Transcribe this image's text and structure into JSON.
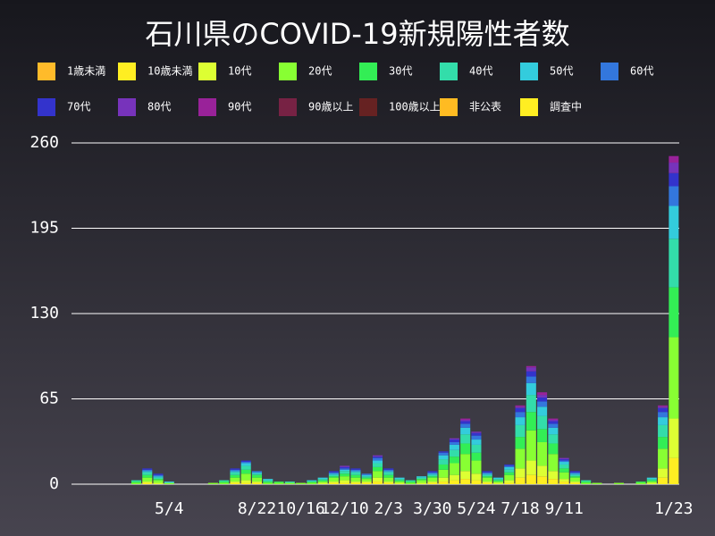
{
  "chart_data": {
    "type": "stacked_bar",
    "title": "石川県のCOVID-19新規陽性者数",
    "categories": [
      null,
      null,
      null,
      null,
      null,
      null,
      null,
      null,
      "5/4",
      null,
      null,
      null,
      null,
      null,
      null,
      null,
      "8/22",
      null,
      null,
      null,
      "10/16",
      null,
      null,
      null,
      "12/10",
      null,
      null,
      null,
      "2/3",
      null,
      null,
      null,
      "3/30",
      null,
      null,
      null,
      "5/24",
      null,
      null,
      null,
      "7/18",
      null,
      null,
      null,
      "9/11",
      null,
      null,
      null,
      null,
      null,
      null,
      null,
      null,
      null,
      "1/23"
    ],
    "ylim": [
      0,
      260
    ],
    "yticks": [
      0,
      65,
      130,
      195,
      260
    ],
    "grid": true,
    "series": [
      {
        "name": "1歳未満",
        "color": "#ffbb2a",
        "values": [
          0,
          0,
          0,
          0,
          0,
          0,
          0,
          0,
          0,
          0,
          0,
          0,
          0,
          0,
          0,
          0,
          0,
          0,
          0,
          0,
          0,
          0,
          0,
          0,
          0,
          0,
          0,
          0,
          0,
          0,
          0,
          0,
          0,
          0,
          0,
          0,
          0,
          0,
          0,
          0,
          0,
          0,
          0,
          0,
          0,
          0,
          0,
          0,
          0,
          0,
          0,
          0,
          0,
          0,
          0
        ]
      },
      {
        "name": "10歳未満",
        "color": "#ffee22",
        "values": [
          0,
          0,
          0,
          0,
          0,
          0,
          1,
          0,
          0,
          0,
          0,
          0,
          0,
          0,
          1,
          1,
          1,
          0,
          0,
          0,
          0,
          0,
          0,
          1,
          1,
          1,
          1,
          2,
          1,
          0,
          0,
          0,
          1,
          2,
          3,
          4,
          3,
          1,
          0,
          1,
          5,
          7,
          6,
          4,
          2,
          1,
          0,
          0,
          0,
          0,
          0,
          0,
          0,
          5,
          20
        ]
      },
      {
        "name": "10代",
        "color": "#ddff33",
        "values": [
          0,
          0,
          0,
          0,
          0,
          0,
          1,
          1,
          0,
          0,
          0,
          0,
          0,
          0,
          1,
          2,
          1,
          0,
          0,
          0,
          0,
          0,
          1,
          1,
          2,
          1,
          1,
          3,
          1,
          1,
          0,
          1,
          1,
          3,
          4,
          6,
          5,
          1,
          1,
          2,
          7,
          11,
          8,
          6,
          2,
          1,
          0,
          0,
          0,
          0,
          0,
          0,
          1,
          7,
          30
        ]
      },
      {
        "name": "20代",
        "color": "#88ff33",
        "values": [
          0,
          0,
          0,
          0,
          0,
          1,
          3,
          2,
          1,
          0,
          0,
          0,
          1,
          1,
          3,
          5,
          3,
          1,
          1,
          1,
          1,
          1,
          1,
          3,
          3,
          3,
          2,
          5,
          3,
          1,
          1,
          2,
          3,
          6,
          9,
          13,
          10,
          3,
          1,
          4,
          15,
          23,
          18,
          13,
          5,
          3,
          1,
          1,
          0,
          1,
          0,
          1,
          1,
          15,
          62
        ]
      },
      {
        "name": "30代",
        "color": "#33ee55",
        "values": [
          0,
          0,
          0,
          0,
          0,
          1,
          2,
          1,
          0,
          0,
          0,
          0,
          0,
          1,
          2,
          3,
          2,
          1,
          1,
          0,
          0,
          1,
          1,
          1,
          2,
          2,
          1,
          3,
          2,
          1,
          1,
          1,
          1,
          4,
          5,
          8,
          6,
          1,
          1,
          2,
          9,
          14,
          10,
          8,
          3,
          1,
          1,
          0,
          0,
          0,
          0,
          1,
          1,
          9,
          38
        ]
      },
      {
        "name": "40代",
        "color": "#33ddaa",
        "values": [
          0,
          0,
          0,
          0,
          0,
          1,
          2,
          1,
          0,
          0,
          0,
          0,
          0,
          1,
          2,
          3,
          1,
          1,
          0,
          1,
          0,
          0,
          1,
          1,
          2,
          2,
          1,
          3,
          2,
          1,
          1,
          1,
          1,
          4,
          5,
          7,
          6,
          1,
          1,
          2,
          9,
          13,
          10,
          7,
          3,
          1,
          1,
          0,
          0,
          0,
          0,
          0,
          1,
          9,
          37
        ]
      },
      {
        "name": "50代",
        "color": "#33ccdd",
        "values": [
          0,
          0,
          0,
          0,
          0,
          0,
          1,
          1,
          1,
          0,
          0,
          0,
          0,
          0,
          1,
          2,
          1,
          1,
          0,
          0,
          0,
          1,
          1,
          1,
          1,
          1,
          1,
          2,
          1,
          1,
          0,
          1,
          1,
          3,
          4,
          5,
          4,
          1,
          1,
          2,
          6,
          9,
          7,
          5,
          2,
          1,
          0,
          0,
          0,
          0,
          0,
          0,
          1,
          6,
          25
        ]
      },
      {
        "name": "60代",
        "color": "#3377dd",
        "values": [
          0,
          0,
          0,
          0,
          0,
          0,
          1,
          1,
          0,
          0,
          0,
          0,
          0,
          0,
          1,
          1,
          1,
          0,
          0,
          0,
          0,
          0,
          0,
          1,
          1,
          1,
          1,
          2,
          1,
          0,
          0,
          0,
          1,
          2,
          2,
          3,
          3,
          1,
          0,
          1,
          4,
          5,
          4,
          3,
          1,
          1,
          0,
          0,
          0,
          0,
          0,
          0,
          0,
          4,
          15
        ]
      },
      {
        "name": "70代",
        "color": "#3333cc",
        "values": [
          0,
          0,
          0,
          0,
          0,
          0,
          1,
          1,
          0,
          0,
          0,
          0,
          0,
          0,
          1,
          1,
          0,
          0,
          0,
          0,
          0,
          0,
          0,
          1,
          1,
          1,
          0,
          1,
          1,
          0,
          0,
          0,
          1,
          1,
          2,
          2,
          2,
          1,
          0,
          1,
          3,
          4,
          3,
          2,
          1,
          1,
          0,
          0,
          0,
          0,
          0,
          0,
          0,
          3,
          10
        ]
      },
      {
        "name": "80代",
        "color": "#7733bb",
        "values": [
          0,
          0,
          0,
          0,
          0,
          0,
          0,
          0,
          0,
          0,
          0,
          0,
          0,
          0,
          0,
          0,
          0,
          0,
          0,
          0,
          0,
          0,
          0,
          0,
          1,
          0,
          0,
          1,
          0,
          0,
          0,
          0,
          0,
          0,
          1,
          1,
          1,
          0,
          0,
          0,
          1,
          3,
          2,
          1,
          1,
          0,
          0,
          0,
          0,
          0,
          0,
          0,
          0,
          1,
          8
        ]
      },
      {
        "name": "90代",
        "color": "#992299",
        "values": [
          0,
          0,
          0,
          0,
          0,
          0,
          0,
          0,
          0,
          0,
          0,
          0,
          0,
          0,
          0,
          0,
          0,
          0,
          0,
          0,
          0,
          0,
          0,
          0,
          0,
          0,
          0,
          0,
          0,
          0,
          0,
          0,
          0,
          0,
          0,
          1,
          0,
          0,
          0,
          0,
          1,
          1,
          2,
          1,
          0,
          0,
          0,
          0,
          0,
          0,
          0,
          0,
          0,
          1,
          5
        ]
      },
      {
        "name": "90歳以上",
        "color": "#772244",
        "values": [
          0,
          0,
          0,
          0,
          0,
          0,
          0,
          0,
          0,
          0,
          0,
          0,
          0,
          0,
          0,
          0,
          0,
          0,
          0,
          0,
          0,
          0,
          0,
          0,
          0,
          0,
          0,
          0,
          0,
          0,
          0,
          0,
          0,
          0,
          0,
          0,
          0,
          0,
          0,
          0,
          0,
          0,
          0,
          0,
          0,
          0,
          0,
          0,
          0,
          0,
          0,
          0,
          0,
          0,
          0
        ]
      },
      {
        "name": "100歳以上",
        "color": "#662222",
        "values": [
          0,
          0,
          0,
          0,
          0,
          0,
          0,
          0,
          0,
          0,
          0,
          0,
          0,
          0,
          0,
          0,
          0,
          0,
          0,
          0,
          0,
          0,
          0,
          0,
          0,
          0,
          0,
          0,
          0,
          0,
          0,
          0,
          0,
          0,
          0,
          0,
          0,
          0,
          0,
          0,
          0,
          0,
          0,
          0,
          0,
          0,
          0,
          0,
          0,
          0,
          0,
          0,
          0,
          0,
          0
        ]
      },
      {
        "name": "非公表",
        "color": "#ffbb22",
        "values": [
          0,
          0,
          0,
          0,
          0,
          0,
          0,
          0,
          0,
          0,
          0,
          0,
          0,
          0,
          0,
          0,
          0,
          0,
          0,
          0,
          0,
          0,
          0,
          0,
          0,
          0,
          0,
          0,
          0,
          0,
          0,
          0,
          0,
          0,
          0,
          0,
          0,
          0,
          0,
          0,
          0,
          0,
          0,
          0,
          0,
          0,
          0,
          0,
          0,
          0,
          0,
          0,
          0,
          0,
          0
        ]
      },
      {
        "name": "調査中",
        "color": "#ffee22",
        "values": [
          0,
          0,
          0,
          0,
          0,
          0,
          0,
          0,
          0,
          0,
          0,
          0,
          0,
          0,
          0,
          0,
          0,
          0,
          0,
          0,
          0,
          0,
          0,
          0,
          0,
          0,
          0,
          0,
          0,
          0,
          0,
          0,
          0,
          0,
          0,
          0,
          0,
          0,
          0,
          0,
          0,
          0,
          0,
          0,
          0,
          0,
          0,
          0,
          0,
          0,
          0,
          0,
          0,
          0,
          0
        ]
      }
    ]
  }
}
